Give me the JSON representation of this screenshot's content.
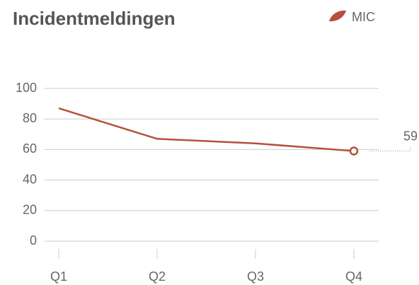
{
  "chart_data": {
    "type": "line",
    "title": "Incidentmeldingen",
    "categories": [
      "Q1",
      "Q2",
      "Q3",
      "Q4"
    ],
    "series": [
      {
        "name": "MIC",
        "color": "#b5503f",
        "values": [
          87,
          67,
          64,
          59
        ]
      }
    ],
    "ylim": [
      0,
      100
    ],
    "yticks": [
      0,
      20,
      40,
      60,
      80,
      100
    ],
    "grid": true,
    "legend": "top-right"
  }
}
